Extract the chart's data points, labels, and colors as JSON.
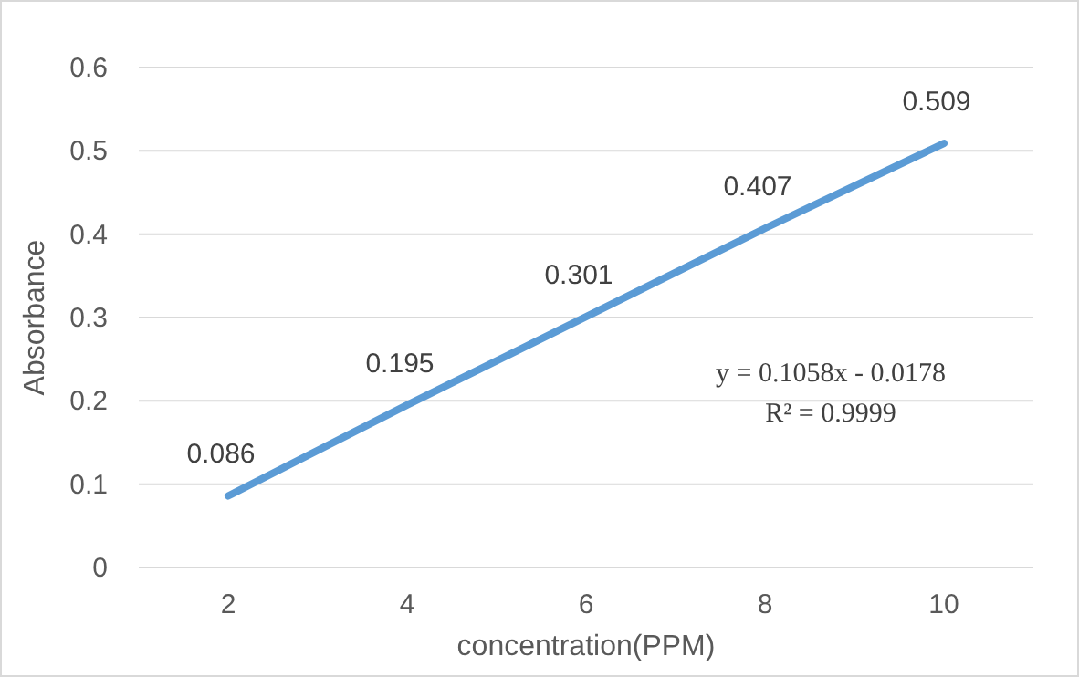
{
  "chart_data": {
    "type": "line",
    "xlabel": "concentration(PPM)",
    "ylabel": "Absorbance",
    "categories": [
      "2",
      "4",
      "6",
      "8",
      "10"
    ],
    "series": [
      {
        "color": "#5b9bd5",
        "values": [
          0.086,
          0.195,
          0.301,
          0.407,
          0.509
        ]
      }
    ],
    "ylim": [
      0,
      0.6
    ],
    "yticks": [
      0,
      0.1,
      0.2,
      0.3,
      0.4,
      0.5,
      0.6
    ],
    "grid": "y",
    "data_labels": true,
    "marker": "none",
    "line_style": "solid",
    "annotations": [
      "y = 0.1058x - 0.0178",
      "R² = 0.9999"
    ]
  }
}
